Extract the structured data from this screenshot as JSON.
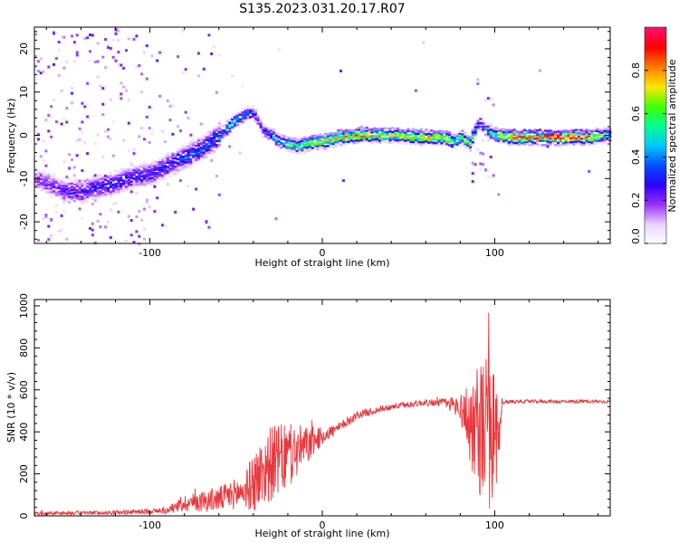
{
  "title": "S135.2023.031.20.17.R07",
  "colors": {
    "snr_line": "#e8383d",
    "frame": "#000000",
    "colormap": [
      "#ffffff",
      "#e8d4ff",
      "#9b30ff",
      "#2d00ff",
      "#0050ff",
      "#00c8ff",
      "#00ff90",
      "#40ff00",
      "#ffe600",
      "#ff7a00",
      "#ff0000",
      "#ff1070"
    ]
  },
  "chart_data": [
    {
      "type": "heatmap",
      "xlabel": "Height of straight line (km)",
      "ylabel": "Frequency (Hz)",
      "xlim": [
        -167,
        167
      ],
      "ylim": [
        -25,
        25
      ],
      "xticks": [
        -100,
        0,
        100
      ],
      "xtick_labels": [
        "-100",
        "0",
        "100"
      ],
      "yticks": [
        -20,
        -10,
        0,
        10,
        20
      ],
      "ytick_labels": [
        "-20",
        "-10",
        "0",
        "10",
        "20"
      ],
      "ridge": {
        "x": [
          -167,
          -150,
          -140,
          -130,
          -120,
          -110,
          -100,
          -90,
          -80,
          -70,
          -60,
          -52,
          -45,
          -40,
          -35,
          -30,
          -25,
          -20,
          -15,
          -10,
          -5,
          0,
          10,
          20,
          40,
          60,
          70,
          75,
          80,
          85,
          90,
          95,
          100,
          110,
          130,
          150,
          167
        ],
        "f": [
          -10,
          -13,
          -13,
          -12,
          -11,
          -9.5,
          -9,
          -7,
          -5,
          -3,
          0,
          3,
          5,
          5,
          1,
          0,
          -1.5,
          -2,
          -2.5,
          -2,
          -1.5,
          -1.5,
          -0.5,
          0,
          0,
          -0.5,
          -0.5,
          -1.5,
          -0.5,
          -2,
          3,
          1,
          0,
          -0.5,
          -0.5,
          -0.5,
          0
        ],
        "amplitude": [
          0.2,
          0.25,
          0.3,
          0.3,
          0.3,
          0.3,
          0.3,
          0.3,
          0.35,
          0.35,
          0.4,
          0.5,
          0.4,
          0.3,
          0.3,
          0.4,
          0.5,
          0.6,
          0.6,
          0.7,
          0.75,
          0.75,
          0.8,
          0.8,
          0.7,
          0.75,
          0.7,
          0.6,
          0.6,
          0.8,
          0.3,
          0.4,
          0.6,
          0.9,
          0.95,
          0.9,
          0.5
        ]
      }
    },
    {
      "type": "line",
      "xlabel": "Height of straight line (km)",
      "ylabel": "SNR (10 * v/v)",
      "xlim": [
        -167,
        167
      ],
      "ylim": [
        0,
        1030
      ],
      "xticks": [
        -100,
        0,
        100
      ],
      "xtick_labels": [
        "-100",
        "0",
        "100"
      ],
      "yticks": [
        0,
        200,
        400,
        600,
        800,
        1000
      ],
      "ytick_labels": [
        "0",
        "200",
        "400",
        "600",
        "800",
        "1000"
      ],
      "envelope": {
        "x": [
          -167,
          -120,
          -90,
          -80,
          -60,
          -45,
          -40,
          -30,
          -20,
          -10,
          0,
          10,
          20,
          40,
          60,
          70,
          80,
          85,
          90,
          95,
          100,
          105,
          110,
          140,
          167
        ],
        "base": [
          12,
          15,
          25,
          60,
          80,
          120,
          160,
          250,
          280,
          330,
          380,
          420,
          480,
          520,
          540,
          540,
          520,
          450,
          420,
          400,
          350,
          540,
          545,
          545,
          545
        ],
        "noise": [
          8,
          10,
          15,
          40,
          60,
          80,
          150,
          180,
          160,
          100,
          40,
          25,
          20,
          15,
          15,
          20,
          60,
          200,
          300,
          380,
          350,
          10,
          8,
          8,
          8
        ]
      }
    }
  ],
  "colorbar": {
    "label": "Normalized spectral amplitude",
    "range": [
      0,
      1
    ],
    "ticks": [
      0.0,
      0.2,
      0.4,
      0.6,
      0.8
    ],
    "tick_labels": [
      "0.0",
      "0.2",
      "0.4",
      "0.6",
      "0.8"
    ]
  }
}
